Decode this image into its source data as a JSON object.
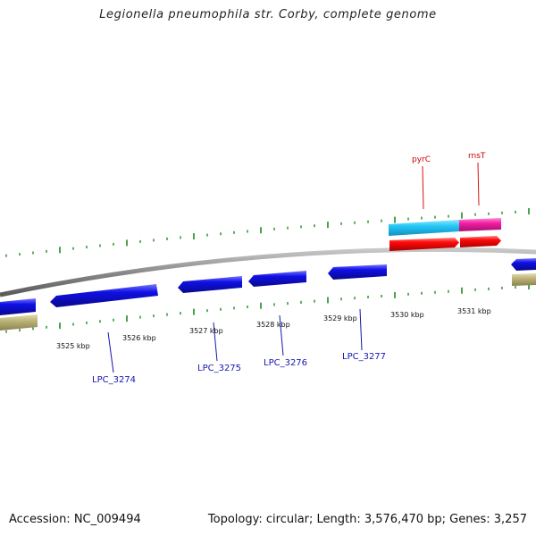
{
  "title": "Legionella pneumophila str. Corby, complete genome",
  "footer": {
    "accession": "Accession: NC_009494",
    "summary": "Topology: circular; Length: 3,576,470 bp; Genes: 3,257"
  },
  "tick_labels": [
    "3525 kbp",
    "3526 kbp",
    "3527 kbp",
    "3528 kbp",
    "3529 kbp",
    "3530 kbp",
    "3531 kbp"
  ],
  "gene_labels_top": [
    "pyrC",
    "rnsT"
  ],
  "gene_labels_bottom": [
    "LPC_3274",
    "LPC_3275",
    "LPC_3276",
    "LPC_3277"
  ],
  "colors": {
    "backbone": "#8f8f8f",
    "forward_cds": "#ff1010",
    "reverse_cds": "#1414e8",
    "cog_cyan": "#22ccff",
    "cog_magenta": "#ff22aa",
    "cog_khaki": "#bdb47a",
    "tick": "#1d8c1d",
    "label_top": "#cc0000",
    "label_bottom": "#1515b0"
  },
  "icons": {
    "forward_arrow": "arrow-right",
    "reverse_arrow": "arrow-left"
  }
}
